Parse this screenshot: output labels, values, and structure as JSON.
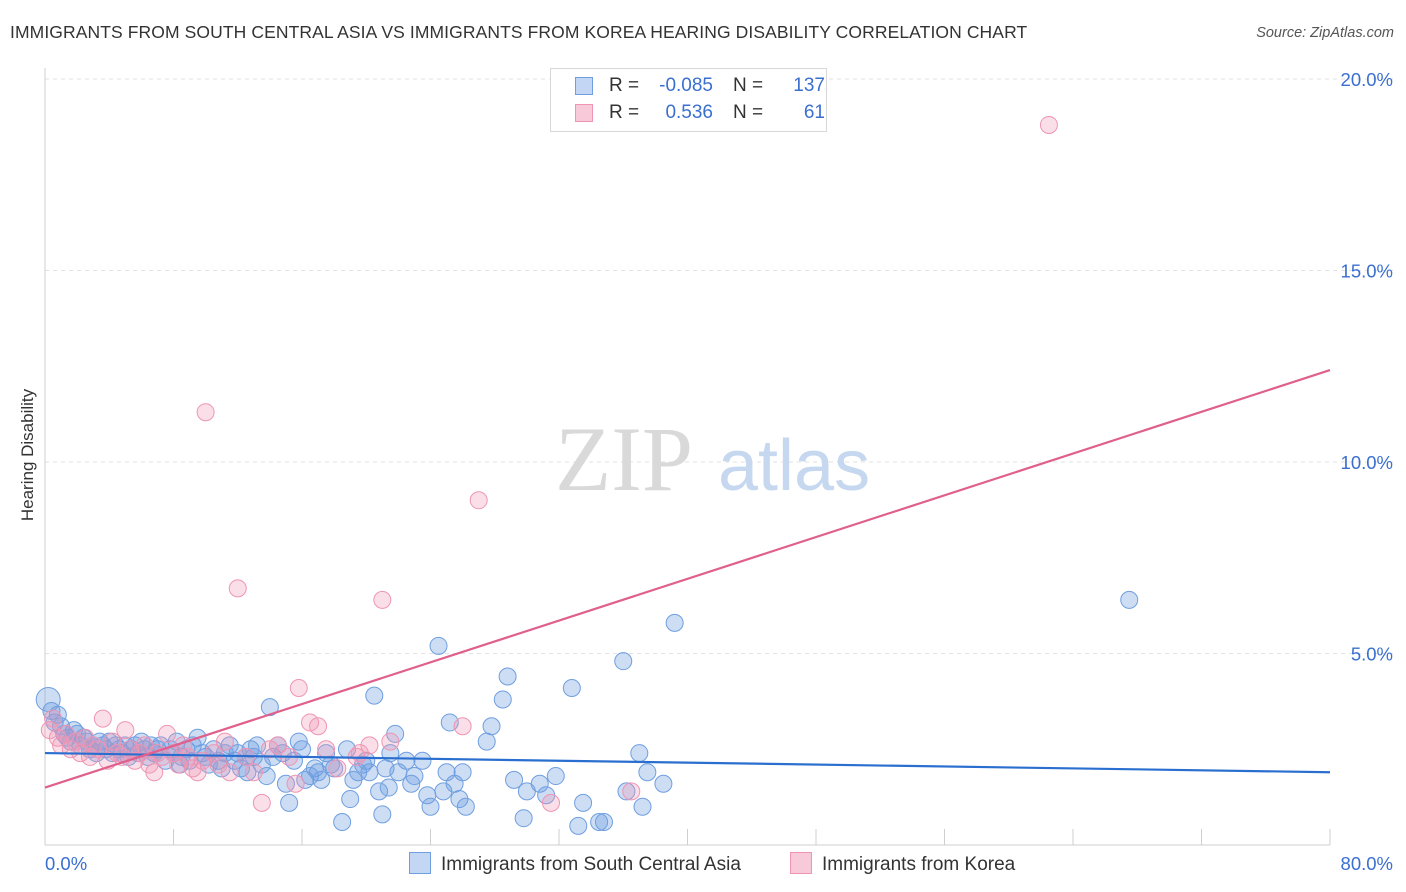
{
  "title": "IMMIGRANTS FROM SOUTH CENTRAL ASIA VS IMMIGRANTS FROM KOREA HEARING DISABILITY CORRELATION CHART",
  "source": "Source: ZipAtlas.com",
  "watermark": {
    "zip": "ZIP",
    "atlas": "atlas"
  },
  "legend": {
    "series1": {
      "r_label": "R =",
      "r_value": "-0.085",
      "n_label": "N =",
      "n_value": "137"
    },
    "series2": {
      "r_label": "R =",
      "r_value": "0.536",
      "n_label": "N =",
      "n_value": "61"
    }
  },
  "colors": {
    "blue": "#6f9fe0",
    "pink": "#ef95b3",
    "blue_line": "#2a6fcf",
    "pink_line": "#e0608d",
    "tick_text": "#3a6fd0"
  },
  "chart_data": {
    "type": "scatter",
    "ylabel": "Hearing Disability",
    "xlabel": "",
    "xlim": [
      0,
      80
    ],
    "ylim": [
      0,
      20
    ],
    "x_tick_labels": [
      "0.0%",
      "80.0%"
    ],
    "y_ticks": [
      5,
      10,
      15,
      20
    ],
    "y_tick_labels": [
      "5.0%",
      "10.0%",
      "15.0%",
      "20.0%"
    ],
    "legend_position": "top-center",
    "series": [
      {
        "name": "Immigrants from South Central Asia",
        "color": "#6f9fe0",
        "trend": [
          [
            0,
            2.4
          ],
          [
            80,
            1.9
          ]
        ],
        "points": [
          [
            0.2,
            3.8
          ],
          [
            0.4,
            3.5
          ],
          [
            0.6,
            3.2
          ],
          [
            0.8,
            3.4
          ],
          [
            1,
            3.1
          ],
          [
            1.2,
            2.9
          ],
          [
            1.4,
            2.8
          ],
          [
            1.6,
            2.7
          ],
          [
            1.8,
            3
          ],
          [
            2,
            2.9
          ],
          [
            2.2,
            2.6
          ],
          [
            2.4,
            2.8
          ],
          [
            2.6,
            2.7
          ],
          [
            2.8,
            2.5
          ],
          [
            3,
            2.6
          ],
          [
            3.2,
            2.4
          ],
          [
            3.4,
            2.7
          ],
          [
            3.6,
            2.6
          ],
          [
            3.8,
            2.5
          ],
          [
            4,
            2.7
          ],
          [
            4.2,
            2.4
          ],
          [
            4.4,
            2.6
          ],
          [
            4.6,
            2.5
          ],
          [
            4.8,
            2.4
          ],
          [
            5,
            2.6
          ],
          [
            5.2,
            2.3
          ],
          [
            5.4,
            2.5
          ],
          [
            5.6,
            2.6
          ],
          [
            5.8,
            2.4
          ],
          [
            6,
            2.7
          ],
          [
            6.2,
            2.5
          ],
          [
            6.4,
            2.3
          ],
          [
            6.6,
            2.6
          ],
          [
            6.8,
            2.4
          ],
          [
            7,
            2.5
          ],
          [
            7.2,
            2.6
          ],
          [
            7.5,
            2.2
          ],
          [
            7.8,
            2.5
          ],
          [
            8,
            2.4
          ],
          [
            8.2,
            2.7
          ],
          [
            8.5,
            2.3
          ],
          [
            8.8,
            2.5
          ],
          [
            9,
            2.2
          ],
          [
            9.2,
            2.6
          ],
          [
            9.5,
            2.8
          ],
          [
            9.8,
            2.4
          ],
          [
            10,
            2.3
          ],
          [
            10.2,
            2.1
          ],
          [
            10.5,
            2.5
          ],
          [
            10.8,
            2.2
          ],
          [
            11,
            2
          ],
          [
            11.2,
            2.4
          ],
          [
            11.5,
            2.6
          ],
          [
            11.8,
            2.2
          ],
          [
            12,
            2.4
          ],
          [
            12.2,
            2
          ],
          [
            12.5,
            2.3
          ],
          [
            12.8,
            2.5
          ],
          [
            13,
            2.3
          ],
          [
            13.2,
            2.6
          ],
          [
            13.5,
            2.1
          ],
          [
            13.8,
            1.8
          ],
          [
            14,
            3.6
          ],
          [
            14.2,
            2.3
          ],
          [
            14.5,
            2.6
          ],
          [
            14.8,
            2.4
          ],
          [
            15,
            1.6
          ],
          [
            15.2,
            1.1
          ],
          [
            15.5,
            2.2
          ],
          [
            15.8,
            2.7
          ],
          [
            16,
            2.5
          ],
          [
            16.2,
            1.7
          ],
          [
            16.5,
            1.8
          ],
          [
            16.8,
            2
          ],
          [
            17,
            1.9
          ],
          [
            17.5,
            2.4
          ],
          [
            17.8,
            2.1
          ],
          [
            18,
            2
          ],
          [
            18.5,
            0.6
          ],
          [
            18.8,
            2.5
          ],
          [
            19,
            1.2
          ],
          [
            19.2,
            1.7
          ],
          [
            19.5,
            1.9
          ],
          [
            19.8,
            2.1
          ],
          [
            20,
            2.2
          ],
          [
            20.2,
            1.9
          ],
          [
            20.5,
            3.9
          ],
          [
            20.8,
            1.4
          ],
          [
            21,
            0.8
          ],
          [
            21.2,
            2
          ],
          [
            21.5,
            2.4
          ],
          [
            21.8,
            2.9
          ],
          [
            22,
            1.9
          ],
          [
            22.5,
            2.2
          ],
          [
            22.8,
            1.6
          ],
          [
            23,
            1.8
          ],
          [
            23.5,
            2.2
          ],
          [
            23.8,
            1.3
          ],
          [
            24,
            1
          ],
          [
            24.5,
            5.2
          ],
          [
            24.8,
            1.4
          ],
          [
            25,
            1.9
          ],
          [
            25.2,
            3.2
          ],
          [
            25.5,
            1.6
          ],
          [
            25.8,
            1.2
          ],
          [
            26,
            1.9
          ],
          [
            26.2,
            1
          ],
          [
            27.5,
            2.7
          ],
          [
            27.8,
            3.1
          ],
          [
            28.5,
            3.8
          ],
          [
            28.8,
            4.4
          ],
          [
            29.2,
            1.7
          ],
          [
            29.8,
            0.7
          ],
          [
            30,
            1.4
          ],
          [
            30.8,
            1.6
          ],
          [
            31.2,
            1.3
          ],
          [
            31.8,
            1.8
          ],
          [
            32.8,
            4.1
          ],
          [
            33.2,
            0.5
          ],
          [
            33.5,
            1.1
          ],
          [
            34.5,
            0.6
          ],
          [
            34.8,
            0.6
          ],
          [
            36,
            4.8
          ],
          [
            36.2,
            1.4
          ],
          [
            37,
            2.4
          ],
          [
            37.2,
            1
          ],
          [
            37.5,
            1.9
          ],
          [
            38.5,
            1.6
          ],
          [
            39.2,
            5.8
          ],
          [
            67.5,
            6.4
          ],
          [
            8.4,
            2.1
          ],
          [
            12.6,
            1.9
          ],
          [
            17.2,
            1.7
          ],
          [
            21.4,
            1.5
          ]
        ]
      },
      {
        "name": "Immigrants from Korea",
        "color": "#ef95b3",
        "trend": [
          [
            0,
            1.5
          ],
          [
            80,
            12.4
          ]
        ],
        "points": [
          [
            0.3,
            3
          ],
          [
            0.5,
            3.3
          ],
          [
            0.8,
            2.8
          ],
          [
            1,
            2.6
          ],
          [
            1.3,
            2.9
          ],
          [
            1.6,
            2.5
          ],
          [
            1.9,
            2.7
          ],
          [
            2.2,
            2.4
          ],
          [
            2.5,
            2.8
          ],
          [
            2.8,
            2.3
          ],
          [
            3,
            2.6
          ],
          [
            3.3,
            2.5
          ],
          [
            3.6,
            3.3
          ],
          [
            3.9,
            2.2
          ],
          [
            4.2,
            2.7
          ],
          [
            4.5,
            2.4
          ],
          [
            4.8,
            2.3
          ],
          [
            5,
            3
          ],
          [
            5.3,
            2.5
          ],
          [
            5.6,
            2.2
          ],
          [
            5.9,
            2.4
          ],
          [
            6.2,
            2.6
          ],
          [
            6.5,
            2.1
          ],
          [
            6.8,
            1.9
          ],
          [
            7,
            2.4
          ],
          [
            7.3,
            2.3
          ],
          [
            7.6,
            2.9
          ],
          [
            8,
            2.4
          ],
          [
            8.3,
            2.1
          ],
          [
            8.6,
            2.6
          ],
          [
            8.9,
            2.3
          ],
          [
            9.2,
            2
          ],
          [
            9.5,
            1.9
          ],
          [
            9.8,
            2.2
          ],
          [
            10,
            11.3
          ],
          [
            10.5,
            2.4
          ],
          [
            10.8,
            2.1
          ],
          [
            11.2,
            2.7
          ],
          [
            11.5,
            1.9
          ],
          [
            12,
            6.7
          ],
          [
            12.5,
            2.3
          ],
          [
            13,
            1.9
          ],
          [
            13.5,
            1.1
          ],
          [
            14,
            2.5
          ],
          [
            14.5,
            2.6
          ],
          [
            15.2,
            2.3
          ],
          [
            15.6,
            1.6
          ],
          [
            15.8,
            4.1
          ],
          [
            16.5,
            3.2
          ],
          [
            17,
            3.1
          ],
          [
            17.5,
            2.5
          ],
          [
            18.2,
            2
          ],
          [
            19.4,
            2.3
          ],
          [
            19.6,
            2.4
          ],
          [
            20.2,
            2.6
          ],
          [
            21,
            6.4
          ],
          [
            21.5,
            2.7
          ],
          [
            26,
            3.1
          ],
          [
            27,
            9
          ],
          [
            31.5,
            1.1
          ],
          [
            36.5,
            1.4
          ],
          [
            62.5,
            18.8
          ]
        ]
      }
    ]
  },
  "bottom_legend": {
    "series1": "Immigrants from South Central Asia",
    "series2": "Immigrants from Korea"
  }
}
